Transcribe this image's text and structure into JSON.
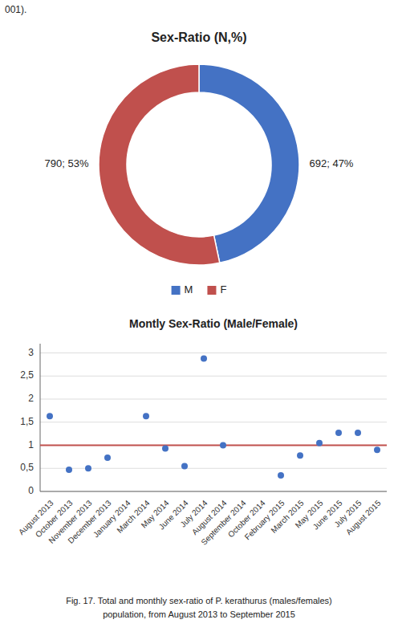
{
  "chart_data": [
    {
      "type": "donut",
      "title": "Sex-Ratio (N,%)",
      "categories": [
        "M",
        "F"
      ],
      "values": [
        692,
        790
      ],
      "value_labels": [
        "692; 47%",
        "790; 53%"
      ],
      "colors": [
        "#4472C4",
        "#C0504D"
      ],
      "data_labels": true,
      "legend": "bottom",
      "annotations": [
        "001)."
      ]
    },
    {
      "type": "scatter",
      "title": "Montly Sex-Ratio (Male/Female)",
      "categories": [
        "August 2013",
        "October 2013",
        "November 2013",
        "December 2013",
        "January 2014",
        "March 2014",
        "May 2014",
        "June 2014",
        "July 2014",
        "August 2014",
        "September 2014",
        "October 2014",
        "February 2015",
        "March 2015",
        "May 2015",
        "June 2015",
        "July 2015",
        "August 2015"
      ],
      "values": [
        1.63,
        0.47,
        0.5,
        0.73,
        null,
        1.63,
        0.93,
        0.55,
        2.88,
        1.0,
        null,
        null,
        0.35,
        0.78,
        1.05,
        1.27,
        1.27,
        0.9
      ],
      "color": "#4472C4",
      "marker": "circle",
      "ref_line": {
        "value": 1.0,
        "color": "#C0504D"
      },
      "ylim": [
        0,
        3.2
      ],
      "yticks": [
        0,
        {
          "value": 0.5,
          "label": "0,5"
        },
        1,
        {
          "value": 1.5,
          "label": "1,5"
        },
        2,
        {
          "value": 2.5,
          "label": "2,5"
        },
        3
      ],
      "grid": true,
      "annotations": [
        "Fig. 17. Total and monthly sex-ratio of P. kerathurus (males/females)",
        "population, from August 2013 to September 2015"
      ]
    }
  ]
}
